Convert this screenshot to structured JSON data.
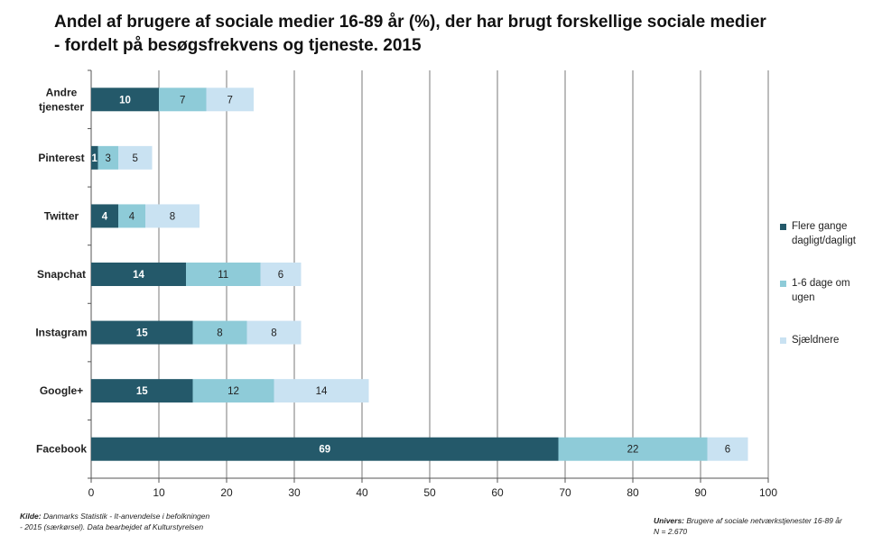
{
  "title": {
    "line1": "Andel af brugere af sociale medier 16-89 år (%), der har brugt forskellige sociale medier",
    "line2": "- fordelt på besøgsfrekvens og tjeneste. 2015"
  },
  "chart_data": {
    "type": "bar",
    "orientation": "horizontal",
    "stacked": true,
    "categories": [
      "Andre tjenester",
      "Pinterest",
      "Twitter",
      "Snapchat",
      "Instagram",
      "Google+",
      "Facebook"
    ],
    "category_lines": [
      [
        "Andre",
        "tjenester"
      ],
      [
        "Pinterest"
      ],
      [
        "Twitter"
      ],
      [
        "Snapchat"
      ],
      [
        "Instagram"
      ],
      [
        "Google+"
      ],
      [
        "Facebook"
      ]
    ],
    "series": [
      {
        "name": "Flere gange dagligt/dagligt",
        "color": "#24596a",
        "label_color": "#ffffff",
        "values": [
          10,
          1,
          4,
          14,
          15,
          15,
          69
        ]
      },
      {
        "name": "1-6 dage om ugen",
        "color": "#8ecbd8",
        "label_color": "#222222",
        "values": [
          7,
          3,
          4,
          11,
          8,
          12,
          22
        ]
      },
      {
        "name": "Sjældnere",
        "color": "#c9e2f2",
        "label_color": "#222222",
        "values": [
          7,
          5,
          8,
          6,
          8,
          14,
          6
        ]
      }
    ],
    "xlim": [
      0,
      100
    ],
    "xticks": [
      0,
      10,
      20,
      30,
      40,
      50,
      60,
      70,
      80,
      90,
      100
    ],
    "grid": true,
    "legend_position": "right"
  },
  "legend": {
    "items": [
      {
        "lines": [
          "Flere gange",
          "dagligt/dagligt"
        ],
        "color": "#24596a"
      },
      {
        "lines": [
          "1-6 dage om",
          "ugen"
        ],
        "color": "#8ecbd8"
      },
      {
        "lines": [
          "Sjældnere"
        ],
        "color": "#c9e2f2"
      }
    ]
  },
  "footnotes": {
    "source_label": "Kilde:",
    "source_line1": " Danmarks Statistik - It-anvendelse i befolkningen",
    "source_line2": "- 2015 (særkørsel). Data bearbejdet af  Kulturstyrelsen",
    "universe_label": "Univers:",
    "universe_text": "  Brugere af sociale netværkstjenester 16-89 år",
    "n_text": "N =  2.670"
  }
}
